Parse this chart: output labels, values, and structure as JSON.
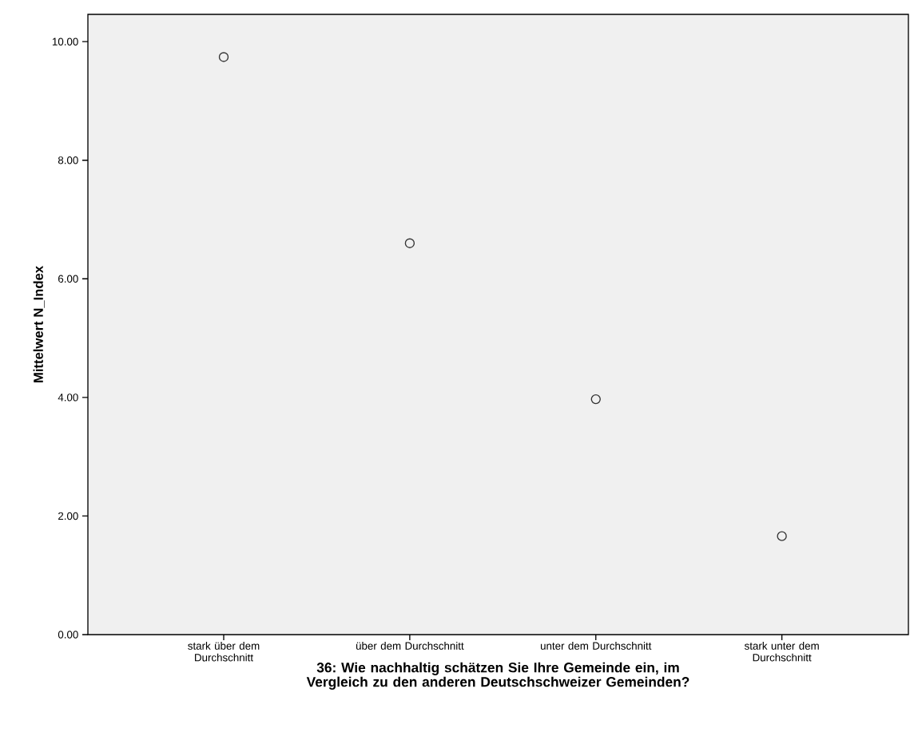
{
  "chart_data": {
    "type": "scatter",
    "xlabel": "36: Wie nachhaltig schätzen Sie Ihre Gemeinde ein, im Vergleich zu den anderen Deutschschweizer Gemeinden?",
    "ylabel": "Mittelwert N_Index",
    "categories": [
      "stark über dem Durchschnitt",
      "über dem Durchschnitt",
      "unter dem Durchschnitt",
      "stark unter dem Durchschnitt"
    ],
    "values": [
      9.74,
      6.6,
      3.97,
      1.66
    ],
    "color": "#333333",
    "marker": "circle",
    "ylim": [
      0,
      10.46
    ],
    "yticks": [
      {
        "value": 0,
        "label": "0.00"
      },
      {
        "value": 2,
        "label": "2.00"
      },
      {
        "value": 4,
        "label": "4.00"
      },
      {
        "value": 6,
        "label": "6.00"
      },
      {
        "value": 8,
        "label": "8.00"
      },
      {
        "value": 10,
        "label": "10.00"
      }
    ],
    "grid": false
  }
}
